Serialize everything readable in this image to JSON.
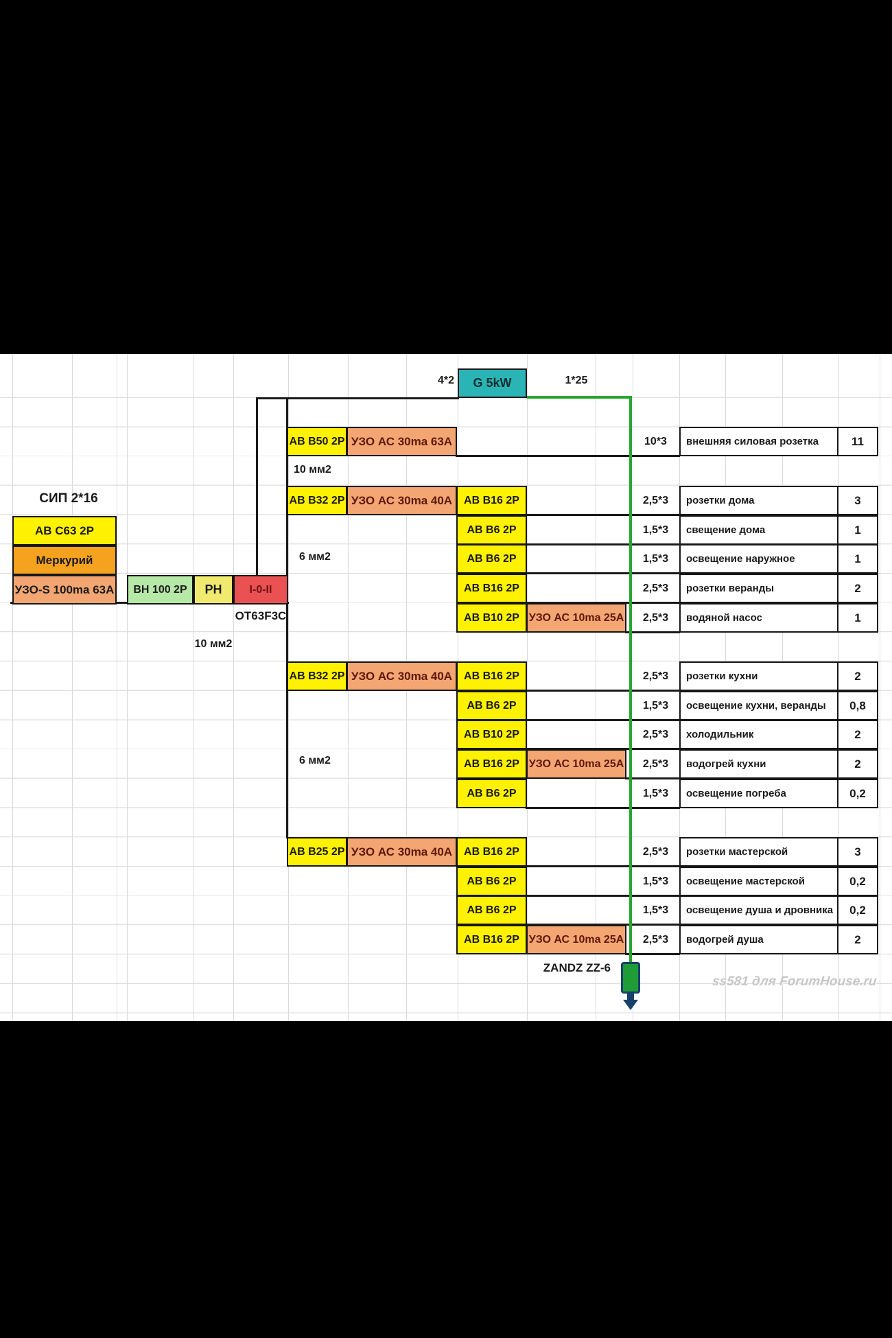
{
  "colors": {
    "breaker_yellow": "#FFF200",
    "rcd_salmon": "#F3A672",
    "meter_orange": "#F5A21E",
    "switch_green": "#B6E9A7",
    "relay_yellow": "#F0EB6E",
    "changeover_red": "#E95153",
    "generator_teal": "#2BB4B6",
    "ground_wire_green": "#27A62F",
    "ground_symbol_green": "#1F9C35",
    "ground_symbol_border": "#17406B"
  },
  "top": {
    "generator_cable": "4*2",
    "generator_label": "G 5kW",
    "ground_cable": "1*25"
  },
  "incoming": {
    "supply_cable": "СИП 2*16",
    "main_breaker": "АВ С63 2Р",
    "meter": "Меркурий",
    "main_rcd": "УЗО-S 100ma 63А",
    "load_switch": "ВН 100 2Р",
    "voltage_relay": "РН",
    "changeover": "I-0-II",
    "changeover_model": "ОТ63F3C",
    "cable_note": "10 мм2"
  },
  "riser_labels": [
    "10 мм2",
    "6 мм2",
    "6 мм2"
  ],
  "circuits": [
    {
      "breaker": "АВ В50 2Р",
      "rcd": "УЗО АС 30ma 63А",
      "cable": "10*3",
      "load": "внешняя силовая розетка",
      "power": "11"
    },
    {
      "feeder": "АВ В32 2Р",
      "feeder_rcd": "УЗО АС 30ma 40А",
      "breaker": "АВ В16 2Р",
      "cable": "2,5*3",
      "load": "розетки дома",
      "power": "3"
    },
    {
      "breaker": "АВ В6 2Р",
      "cable": "1,5*3",
      "load": "свещение дома",
      "power": "1"
    },
    {
      "breaker": "АВ В6 2Р",
      "cable": "1,5*3",
      "load": "освещение наружное",
      "power": "1"
    },
    {
      "breaker": "АВ В16 2Р",
      "cable": "2,5*3",
      "load": "розетки веранды",
      "power": "2"
    },
    {
      "breaker": "АВ В10 2Р",
      "rcd": "УЗО АС 10ma 25А",
      "cable": "2,5*3",
      "load": "водяной насос",
      "power": "1"
    },
    {
      "feeder": "АВ В32 2Р",
      "feeder_rcd": "УЗО АС 30ma 40А",
      "breaker": "АВ В16 2Р",
      "cable": "2,5*3",
      "load": "розетки кухни",
      "power": "2"
    },
    {
      "breaker": "АВ В6 2Р",
      "cable": "1,5*3",
      "load": "освещение кухни, веранды",
      "power": "0,8"
    },
    {
      "breaker": "АВ В10 2Р",
      "cable": "2,5*3",
      "load": "холодильник",
      "power": "2"
    },
    {
      "breaker": "АВ В16 2Р",
      "rcd": "УЗО АС 10ma 25А",
      "cable": "2,5*3",
      "load": "водогрей кухни",
      "power": "2"
    },
    {
      "breaker": "АВ В6 2Р",
      "cable": "1,5*3",
      "load": "освещение погреба",
      "power": "0,2"
    },
    {
      "feeder": "АВ В25 2Р",
      "feeder_rcd": "УЗО АС 30ma 40А",
      "breaker": "АВ В16 2Р",
      "cable": "2,5*3",
      "load": "розетки мастерской",
      "power": "3"
    },
    {
      "breaker": "АВ В6 2Р",
      "cable": "1,5*3",
      "load": "освещение мастерской",
      "power": "0,2"
    },
    {
      "breaker": "АВ В6 2Р",
      "cable": "1,5*3",
      "load": "освещение душа и дровника",
      "power": "0,2"
    },
    {
      "breaker": "АВ В16 2Р",
      "rcd": "УЗО АС 10ma 25А",
      "cable": "2,5*3",
      "load": "водогрей душа",
      "power": "2"
    }
  ],
  "ground": {
    "label": "ZANDZ ZZ-6"
  },
  "watermark": "ss581 для ForumHouse.ru"
}
